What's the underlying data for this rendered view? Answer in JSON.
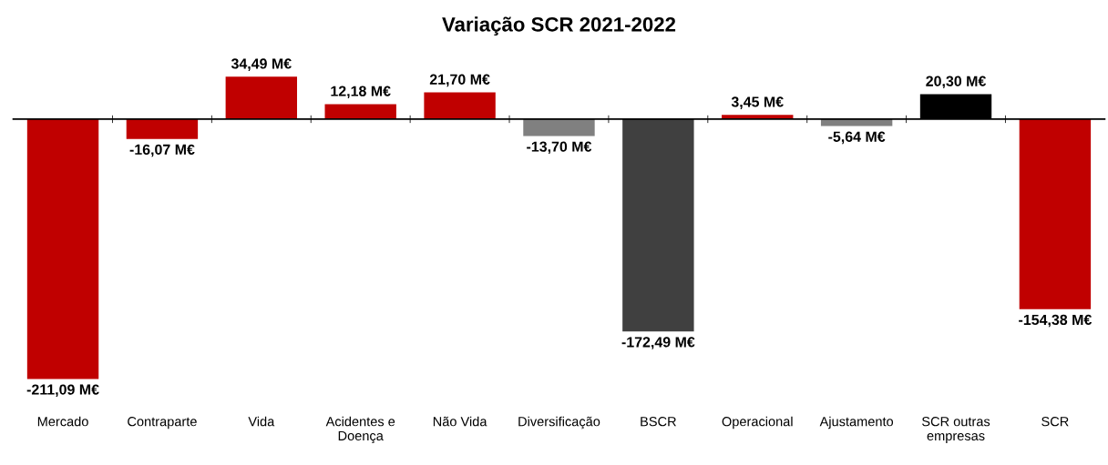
{
  "chart_data": {
    "type": "bar",
    "title": "Variação SCR 2021-2022",
    "categories": [
      "Mercado",
      "Contraparte",
      "Vida",
      "Acidentes e\nDoença",
      "Não Vida",
      "Diversificação",
      "BSCR",
      "Operacional",
      "Ajustamento",
      "SCR outras\nempresas",
      "SCR"
    ],
    "values": [
      -211.09,
      -16.07,
      34.49,
      12.18,
      21.7,
      -13.7,
      -172.49,
      3.45,
      -5.64,
      20.3,
      -154.38
    ],
    "colors": [
      "#c00000",
      "#c00000",
      "#c00000",
      "#c00000",
      "#c00000",
      "#808080",
      "#404040",
      "#c00000",
      "#808080",
      "#000000",
      "#c00000"
    ],
    "value_labels": [
      "-211,09 M€",
      "-16,07 M€",
      "34,49 M€",
      "12,18 M€",
      "21,70 M€",
      "-13,70 M€",
      "-172,49 M€",
      "3,45 M€",
      "-5,64 M€",
      "20,30 M€",
      "-154,38 M€"
    ]
  }
}
